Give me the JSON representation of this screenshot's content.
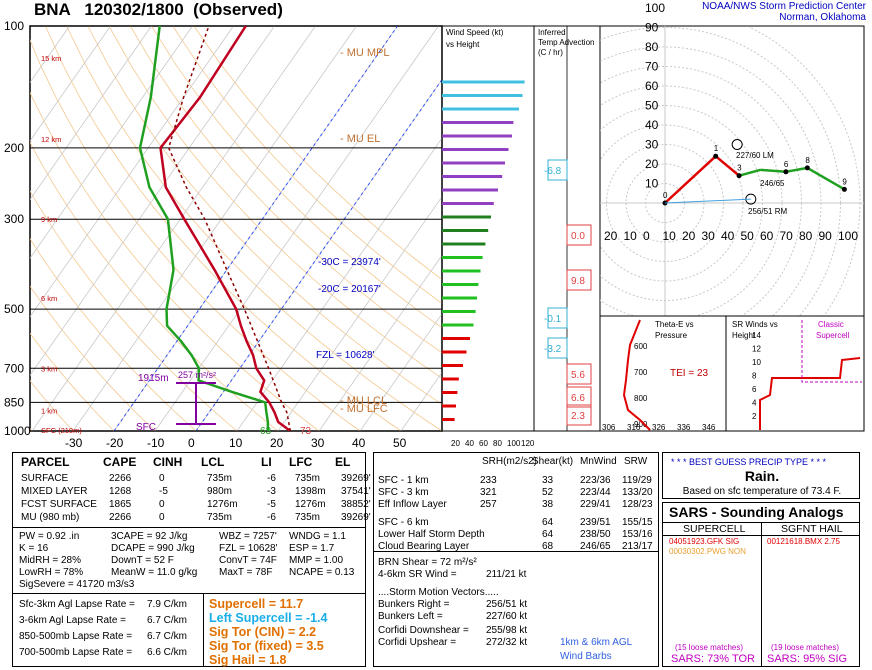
{
  "header": {
    "station": "BNA",
    "time": "120302/1800",
    "status": "(Observed)",
    "center_line1": "NOAA/NWS Storm Prediction Center",
    "center_line2": "Norman, Oklahoma"
  },
  "chart_data": [
    {
      "type": "line",
      "name": "skew-t",
      "pressure_ticks": [
        "100",
        "200",
        "300",
        "500",
        "700",
        "850",
        "1000"
      ],
      "temperature_ticks": [
        "-30",
        "-20",
        "-10",
        "0",
        "10",
        "20",
        "30",
        "40",
        "50"
      ],
      "height_labels": [
        "15 km",
        "12 km",
        "9 km",
        "6 km",
        "3 km",
        "1 km",
        "SFC (210m)"
      ],
      "annotations": {
        "mu_mpl": "- MU MPL",
        "mu_el": "- MU EL",
        "mu_lfc": "- MU LFC",
        "mu_lcl": "- MU LCL",
        "m30c": "-30C = 23974'",
        "m20c": "-20C = 20167'",
        "fzl": "FZL = 10628'",
        "dcape": "1915m",
        "m2s2": "257 m²/s²",
        "sfc": "SFC",
        "sfc_t": "73",
        "sfc_td": "63"
      },
      "series": [
        {
          "name": "temperature",
          "points": [
            [
              1000,
              23
            ],
            [
              950,
              18.5
            ],
            [
              900,
              16
            ],
            [
              850,
              13
            ],
            [
              800,
              9
            ],
            [
              750,
              8
            ],
            [
              700,
              4
            ],
            [
              650,
              1
            ],
            [
              600,
              -3
            ],
            [
              550,
              -7
            ],
            [
              500,
              -11
            ],
            [
              400,
              -23
            ],
            [
              300,
              -39
            ],
            [
              250,
              -49
            ],
            [
              200,
              -57
            ],
            [
              150,
              -56
            ],
            [
              100,
              -57
            ]
          ]
        },
        {
          "name": "dewpoint",
          "points": [
            [
              1000,
              17.5
            ],
            [
              950,
              16
            ],
            [
              900,
              14
            ],
            [
              850,
              12
            ],
            [
              800,
              2
            ],
            [
              750,
              -8
            ],
            [
              700,
              -10
            ],
            [
              650,
              -14
            ],
            [
              600,
              -19
            ],
            [
              550,
              -25
            ],
            [
              500,
              -28
            ],
            [
              400,
              -33
            ],
            [
              300,
              -43
            ],
            [
              250,
              -53
            ],
            [
              200,
              -62
            ],
            [
              150,
              -68
            ],
            [
              100,
              -78
            ]
          ]
        },
        {
          "name": "parcel",
          "points": [
            [
              1000,
              23
            ],
            [
              900,
              19
            ],
            [
              850,
              16
            ],
            [
              700,
              7
            ],
            [
              500,
              -9
            ],
            [
              400,
              -20
            ],
            [
              300,
              -34
            ],
            [
              250,
              -44
            ],
            [
              200,
              -55
            ],
            [
              150,
              -60
            ],
            [
              100,
              -66
            ]
          ]
        }
      ]
    },
    {
      "type": "bar",
      "name": "wind-speed-vs-height",
      "title": "Wind Speed (kt)",
      "subtitle": "vs Height",
      "x_ticks": [
        "20",
        "40",
        "60",
        "80",
        "100",
        "120"
      ],
      "values": [
        18,
        20,
        22,
        24,
        30,
        35,
        40,
        45,
        48,
        50,
        52,
        55,
        58,
        62,
        66,
        70,
        74,
        80,
        86,
        90,
        95,
        100,
        102,
        110,
        115,
        118
      ]
    },
    {
      "type": "bar",
      "name": "inferred-temp-advection",
      "title": "Inferred",
      "subtitle": "Temp Advection",
      "unit": "(C / hr)",
      "values": [
        "-6.8",
        "0.0",
        "9.8",
        "-0.1",
        "-3.2",
        "5.6",
        "6.6",
        "2.3"
      ]
    },
    {
      "type": "line",
      "name": "hodograph",
      "ticks": [
        "10",
        "20",
        "30",
        "40",
        "50",
        "60",
        "70",
        "80",
        "90",
        "100"
      ],
      "x_ticks": [
        "20",
        "10",
        "0",
        "10",
        "20",
        "30",
        "40",
        "50",
        "60",
        "70",
        "80",
        "90",
        "100"
      ],
      "point_labels": [
        "0",
        "1",
        "3",
        "6",
        "8",
        "9"
      ],
      "bunkers_left": "227/60 LM",
      "bunkers_right": "256/51 RM",
      "mean": "246/65"
    },
    {
      "type": "line",
      "name": "theta-e-vs-pressure",
      "title": "Theta-E vs",
      "subtitle": "Pressure",
      "tei": "TEI = 23",
      "y_ticks": [
        "600",
        "700",
        "800",
        "900"
      ],
      "x_ticks": [
        "306",
        "316",
        "326",
        "336",
        "346"
      ]
    },
    {
      "type": "line",
      "name": "sr-winds",
      "title": "SR Winds vs",
      "subtitle": "Height",
      "note1": "Classic",
      "note2": "Supercell",
      "y_ticks": [
        "14",
        "12",
        "10",
        "8",
        "6",
        "4",
        "2"
      ]
    }
  ],
  "parcel_table": {
    "headers": [
      "PARCEL",
      "CAPE",
      "CINH",
      "LCL",
      "LI",
      "LFC",
      "EL"
    ],
    "rows": [
      [
        "SURFACE",
        "2266",
        "0",
        "735m",
        "-6",
        "735m",
        "39269'"
      ],
      [
        "MIXED LAYER",
        "1268",
        "-5",
        "980m",
        "-3",
        "1398m",
        "37541'"
      ],
      [
        "FCST SURFACE",
        "1865",
        "0",
        "1276m",
        "-5",
        "1276m",
        "38852'"
      ],
      [
        "MU   (980 mb)",
        "2266",
        "0",
        "735m",
        "-6",
        "735m",
        "39269'"
      ]
    ]
  },
  "indices": [
    [
      "PW = 0.92 .in",
      "3CAPE = 92 J/kg",
      "WBZ = 7257'",
      "WNDG = 1.1"
    ],
    [
      "K = 16",
      "DCAPE = 990 J/kg",
      "FZL = 10628'",
      "ESP = 1.7"
    ],
    [
      "MidRH = 28%",
      "DownT = 52 F",
      "ConvT = 74F",
      "MMP = 1.00"
    ],
    [
      "LowRH = 78%",
      "MeanW = 11.0 g/kg",
      "MaxT = 78F",
      "NCAPE = 0.13"
    ]
  ],
  "sigsevere": "SigSevere = 41720 m3/s3",
  "lapse": [
    [
      "Sfc-3km Agl Lapse Rate =",
      "7.9 C/km"
    ],
    [
      "3-6km Agl Lapse Rate =",
      "6.7 C/km"
    ],
    [
      "850-500mb Lapse Rate =",
      "6.7 C/km"
    ],
    [
      "700-500mb Lapse Rate =",
      "6.6 C/km"
    ]
  ],
  "composite": {
    "supercell": "Supercell = 11.7",
    "left_supercell": "Left Supercell = -1.4",
    "sigtor_cin": "Sig Tor (CIN) = 2.2",
    "sigtor_fixed": "Sig Tor (fixed) = 3.5",
    "sighail": "Sig Hail = 1.8"
  },
  "kinematics": {
    "headers": [
      "SRH(m2/s2)",
      "Shear(kt)",
      "MnWind",
      "SRW"
    ],
    "rows": [
      [
        "SFC - 1 km",
        "233",
        "33",
        "223/36",
        "119/29"
      ],
      [
        "SFC - 3 km",
        "321",
        "52",
        "223/44",
        "133/20"
      ],
      [
        "Eff Inflow Layer",
        "257",
        "38",
        "229/41",
        "128/23"
      ],
      [
        "SFC - 6 km",
        "",
        "64",
        "239/51",
        "155/15"
      ],
      [
        "Lower Half Storm Depth",
        "",
        "64",
        "238/50",
        "153/16"
      ],
      [
        "Cloud Bearing Layer",
        "",
        "68",
        "246/65",
        "213/17"
      ]
    ],
    "brn": "BRN Shear =  72 m²/s²",
    "wind_4_6": "4-6km SR Wind =",
    "wind_4_6_val": "211/21 kt",
    "smv_title": "....Storm Motion Vectors.....",
    "smv": [
      [
        "Bunkers Right =",
        "256/51 kt"
      ],
      [
        "Bunkers Left =",
        "227/60 kt"
      ]
    ],
    "corfidi": [
      [
        "Corfidi Downshear =",
        "255/98 kt"
      ],
      [
        "Corfidi Upshear =",
        "272/32 kt"
      ]
    ],
    "barbs_label1": "1km & 6km AGL",
    "barbs_label2": "Wind Barbs"
  },
  "precip": {
    "title": "* * * BEST GUESS PRECIP TYPE * * *",
    "type": "Rain.",
    "note": "Based on sfc temperature of 73.4 F."
  },
  "sars": {
    "title": "SARS - Sounding Analogs",
    "col1": "SUPERCELL",
    "col2": "SGFNT HAIL",
    "sup_match1": "04051923.GFK  SIG",
    "sup_match2": "00030302.PWG  NON",
    "hail_match1": "00121618.BMX  2.75",
    "loose1": "(15 loose matches)",
    "loose2": "(19 loose matches)",
    "sars1": "SARS:  73% TOR",
    "sars2": "SARS:  95% SIG"
  }
}
